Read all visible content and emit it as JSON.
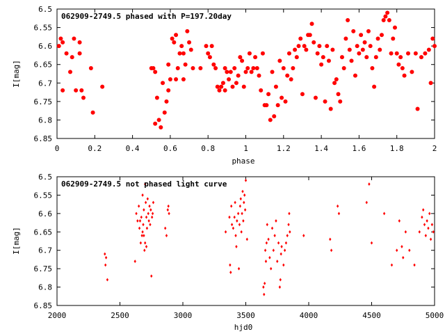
{
  "chart_data": [
    {
      "type": "scatter",
      "title": "062909-2749.5 phased with P=197.20day",
      "xlabel": "phase",
      "ylabel": "I[mag]",
      "xlim": [
        0,
        2
      ],
      "ylim": [
        6.85,
        6.5
      ],
      "y_inverted": true,
      "xticks": [
        "0",
        "0.2",
        "0.4",
        "0.6",
        "0.8",
        "1",
        "1.2",
        "1.4",
        "1.6",
        "1.8",
        "2"
      ],
      "yticks": [
        "6.5",
        "6.55",
        "6.6",
        "6.65",
        "6.7",
        "6.75",
        "6.8",
        "6.85"
      ],
      "marker": "filled-circle",
      "color": "#ff0000",
      "points": [
        [
          0.01,
          6.6
        ],
        [
          0.02,
          6.58
        ],
        [
          0.03,
          6.59
        ],
        [
          0.03,
          6.72
        ],
        [
          0.05,
          6.62
        ],
        [
          0.07,
          6.67
        ],
        [
          0.08,
          6.63
        ],
        [
          0.09,
          6.58
        ],
        [
          0.1,
          6.72
        ],
        [
          0.12,
          6.59
        ],
        [
          0.12,
          6.62
        ],
        [
          0.13,
          6.72
        ],
        [
          0.14,
          6.74
        ],
        [
          0.18,
          6.66
        ],
        [
          0.19,
          6.78
        ],
        [
          0.24,
          6.71
        ],
        [
          0.5,
          6.66
        ],
        [
          0.51,
          6.66
        ],
        [
          0.52,
          6.67
        ],
        [
          0.52,
          6.81
        ],
        [
          0.53,
          6.74
        ],
        [
          0.54,
          6.8
        ],
        [
          0.55,
          6.82
        ],
        [
          0.56,
          6.7
        ],
        [
          0.57,
          6.78
        ],
        [
          0.58,
          6.75
        ],
        [
          0.59,
          6.72
        ],
        [
          0.59,
          6.65
        ],
        [
          0.6,
          6.69
        ],
        [
          0.61,
          6.58
        ],
        [
          0.62,
          6.59
        ],
        [
          0.63,
          6.57
        ],
        [
          0.63,
          6.69
        ],
        [
          0.64,
          6.66
        ],
        [
          0.65,
          6.62
        ],
        [
          0.66,
          6.6
        ],
        [
          0.67,
          6.62
        ],
        [
          0.67,
          6.69
        ],
        [
          0.68,
          6.65
        ],
        [
          0.69,
          6.56
        ],
        [
          0.7,
          6.59
        ],
        [
          0.71,
          6.61
        ],
        [
          0.72,
          6.66
        ],
        [
          0.76,
          6.66
        ],
        [
          0.79,
          6.6
        ],
        [
          0.8,
          6.62
        ],
        [
          0.81,
          6.63
        ],
        [
          0.82,
          6.6
        ],
        [
          0.83,
          6.65
        ],
        [
          0.84,
          6.66
        ],
        [
          0.85,
          6.71
        ],
        [
          0.86,
          6.72
        ],
        [
          0.87,
          6.71
        ],
        [
          0.88,
          6.7
        ],
        [
          0.89,
          6.72
        ],
        [
          0.89,
          6.66
        ],
        [
          0.9,
          6.67
        ],
        [
          0.91,
          6.69
        ],
        [
          0.92,
          6.67
        ],
        [
          0.93,
          6.71
        ],
        [
          0.94,
          6.66
        ],
        [
          0.95,
          6.7
        ],
        [
          0.96,
          6.68
        ],
        [
          0.97,
          6.63
        ],
        [
          0.98,
          6.64
        ],
        [
          0.99,
          6.71
        ],
        [
          1.0,
          6.67
        ],
        [
          1.01,
          6.66
        ],
        [
          1.02,
          6.62
        ],
        [
          1.03,
          6.67
        ],
        [
          1.04,
          6.66
        ],
        [
          1.05,
          6.63
        ],
        [
          1.06,
          6.66
        ],
        [
          1.07,
          6.68
        ],
        [
          1.08,
          6.72
        ],
        [
          1.09,
          6.62
        ],
        [
          1.1,
          6.76
        ],
        [
          1.11,
          6.76
        ],
        [
          1.12,
          6.73
        ],
        [
          1.13,
          6.8
        ],
        [
          1.14,
          6.67
        ],
        [
          1.15,
          6.79
        ],
        [
          1.16,
          6.71
        ],
        [
          1.17,
          6.76
        ],
        [
          1.18,
          6.64
        ],
        [
          1.19,
          6.74
        ],
        [
          1.2,
          6.66
        ],
        [
          1.21,
          6.75
        ],
        [
          1.22,
          6.68
        ],
        [
          1.23,
          6.62
        ],
        [
          1.24,
          6.69
        ],
        [
          1.25,
          6.66
        ],
        [
          1.26,
          6.61
        ],
        [
          1.27,
          6.63
        ],
        [
          1.28,
          6.6
        ],
        [
          1.29,
          6.58
        ],
        [
          1.3,
          6.73
        ],
        [
          1.31,
          6.6
        ],
        [
          1.32,
          6.61
        ],
        [
          1.33,
          6.57
        ],
        [
          1.34,
          6.57
        ],
        [
          1.35,
          6.54
        ],
        [
          1.36,
          6.59
        ],
        [
          1.37,
          6.74
        ],
        [
          1.38,
          6.62
        ],
        [
          1.39,
          6.6
        ],
        [
          1.4,
          6.65
        ],
        [
          1.41,
          6.63
        ],
        [
          1.42,
          6.75
        ],
        [
          1.43,
          6.6
        ],
        [
          1.44,
          6.64
        ],
        [
          1.45,
          6.77
        ],
        [
          1.46,
          6.61
        ],
        [
          1.47,
          6.7
        ],
        [
          1.48,
          6.69
        ],
        [
          1.49,
          6.73
        ],
        [
          1.5,
          6.75
        ],
        [
          1.51,
          6.63
        ],
        [
          1.52,
          6.66
        ],
        [
          1.53,
          6.58
        ],
        [
          1.54,
          6.53
        ],
        [
          1.55,
          6.61
        ],
        [
          1.56,
          6.64
        ],
        [
          1.57,
          6.56
        ],
        [
          1.58,
          6.68
        ],
        [
          1.59,
          6.6
        ],
        [
          1.6,
          6.62
        ],
        [
          1.61,
          6.57
        ],
        [
          1.62,
          6.61
        ],
        [
          1.63,
          6.59
        ],
        [
          1.64,
          6.63
        ],
        [
          1.65,
          6.56
        ],
        [
          1.66,
          6.6
        ],
        [
          1.67,
          6.66
        ],
        [
          1.68,
          6.71
        ],
        [
          1.69,
          6.63
        ],
        [
          1.7,
          6.58
        ],
        [
          1.71,
          6.61
        ],
        [
          1.72,
          6.57
        ],
        [
          1.73,
          6.53
        ],
        [
          1.74,
          6.52
        ],
        [
          1.75,
          6.51
        ],
        [
          1.76,
          6.53
        ],
        [
          1.77,
          6.62
        ],
        [
          1.78,
          6.58
        ],
        [
          1.79,
          6.55
        ],
        [
          1.8,
          6.62
        ],
        [
          1.81,
          6.65
        ],
        [
          1.82,
          6.63
        ],
        [
          1.83,
          6.66
        ],
        [
          1.84,
          6.68
        ],
        [
          1.86,
          6.62
        ],
        [
          1.88,
          6.67
        ],
        [
          1.9,
          6.62
        ],
        [
          1.91,
          6.77
        ],
        [
          1.93,
          6.63
        ],
        [
          1.95,
          6.62
        ],
        [
          1.97,
          6.61
        ],
        [
          1.98,
          6.7
        ],
        [
          1.99,
          6.58
        ],
        [
          2.0,
          6.6
        ]
      ]
    },
    {
      "type": "scatter",
      "title": "062909-2749.5 not phased light curve",
      "xlabel": "hjd0",
      "ylabel": "I[mag]",
      "xlim": [
        2000,
        5000
      ],
      "ylim": [
        6.85,
        6.5
      ],
      "y_inverted": true,
      "xticks": [
        "2000",
        "2500",
        "3000",
        "3500",
        "4000",
        "4500",
        "5000"
      ],
      "yticks": [
        "6.5",
        "6.55",
        "6.6",
        "6.65",
        "6.7",
        "6.75",
        "6.8",
        "6.85"
      ],
      "marker": "small-diamond",
      "color": "#ff0000",
      "points": [
        [
          2380,
          6.71
        ],
        [
          2385,
          6.74
        ],
        [
          2400,
          6.78
        ],
        [
          2390,
          6.72
        ],
        [
          2620,
          6.73
        ],
        [
          2630,
          6.6
        ],
        [
          2640,
          6.62
        ],
        [
          2650,
          6.58
        ],
        [
          2655,
          6.64
        ],
        [
          2660,
          6.62
        ],
        [
          2665,
          6.68
        ],
        [
          2670,
          6.61
        ],
        [
          2675,
          6.66
        ],
        [
          2680,
          6.55
        ],
        [
          2685,
          6.63
        ],
        [
          2690,
          6.59
        ],
        [
          2695,
          6.7
        ],
        [
          2700,
          6.52
        ],
        [
          2705,
          6.57
        ],
        [
          2710,
          6.61
        ],
        [
          2715,
          6.64
        ],
        [
          2720,
          6.56
        ],
        [
          2725,
          6.6
        ],
        [
          2730,
          6.62
        ],
        [
          2735,
          6.58
        ],
        [
          2740,
          6.63
        ],
        [
          2745,
          6.59
        ],
        [
          2750,
          6.77
        ],
        [
          2755,
          6.61
        ],
        [
          2760,
          6.6
        ],
        [
          2765,
          6.57
        ],
        [
          2700,
          6.68
        ],
        [
          2690,
          6.66
        ],
        [
          2710,
          6.69
        ],
        [
          2680,
          6.65
        ],
        [
          2860,
          6.64
        ],
        [
          2870,
          6.66
        ],
        [
          2880,
          6.59
        ],
        [
          2885,
          6.58
        ],
        [
          2890,
          6.6
        ],
        [
          3340,
          6.65
        ],
        [
          3370,
          6.61
        ],
        [
          3375,
          6.74
        ],
        [
          3380,
          6.76
        ],
        [
          3385,
          6.58
        ],
        [
          3390,
          6.63
        ],
        [
          3400,
          6.64
        ],
        [
          3410,
          6.61
        ],
        [
          3415,
          6.57
        ],
        [
          3420,
          6.66
        ],
        [
          3425,
          6.69
        ],
        [
          3430,
          6.62
        ],
        [
          3440,
          6.6
        ],
        [
          3445,
          6.75
        ],
        [
          3450,
          6.63
        ],
        [
          3455,
          6.58
        ],
        [
          3460,
          6.56
        ],
        [
          3465,
          6.65
        ],
        [
          3470,
          6.6
        ],
        [
          3475,
          6.54
        ],
        [
          3480,
          6.62
        ],
        [
          3485,
          6.57
        ],
        [
          3490,
          6.55
        ],
        [
          3495,
          6.59
        ],
        [
          3500,
          6.51
        ],
        [
          3510,
          6.67
        ],
        [
          3640,
          6.8
        ],
        [
          3645,
          6.82
        ],
        [
          3650,
          6.79
        ],
        [
          3655,
          6.7
        ],
        [
          3660,
          6.73
        ],
        [
          3665,
          6.68
        ],
        [
          3670,
          6.63
        ],
        [
          3680,
          6.67
        ],
        [
          3690,
          6.72
        ],
        [
          3700,
          6.75
        ],
        [
          3710,
          6.64
        ],
        [
          3720,
          6.7
        ],
        [
          3730,
          6.66
        ],
        [
          3740,
          6.62
        ],
        [
          3750,
          6.73
        ],
        [
          3760,
          6.68
        ],
        [
          3770,
          6.8
        ],
        [
          3775,
          6.78
        ],
        [
          3780,
          6.71
        ],
        [
          3785,
          6.69
        ],
        [
          3800,
          6.74
        ],
        [
          3810,
          6.7
        ],
        [
          3820,
          6.68
        ],
        [
          3830,
          6.66
        ],
        [
          3840,
          6.63
        ],
        [
          3845,
          6.6
        ],
        [
          3850,
          6.65
        ],
        [
          3960,
          6.66
        ],
        [
          4170,
          6.67
        ],
        [
          4180,
          6.7
        ],
        [
          4230,
          6.58
        ],
        [
          4240,
          6.6
        ],
        [
          4460,
          6.57
        ],
        [
          4480,
          6.52
        ],
        [
          4500,
          6.68
        ],
        [
          4600,
          6.6
        ],
        [
          4660,
          6.74
        ],
        [
          4700,
          6.7
        ],
        [
          4720,
          6.62
        ],
        [
          4740,
          6.69
        ],
        [
          4750,
          6.72
        ],
        [
          4770,
          6.65
        ],
        [
          4800,
          6.7
        ],
        [
          4840,
          6.74
        ],
        [
          4880,
          6.65
        ],
        [
          4900,
          6.61
        ],
        [
          4910,
          6.59
        ],
        [
          4920,
          6.63
        ],
        [
          4930,
          6.66
        ],
        [
          4940,
          6.62
        ],
        [
          4950,
          6.64
        ],
        [
          4960,
          6.6
        ],
        [
          4970,
          6.67
        ],
        [
          4980,
          6.63
        ],
        [
          4990,
          6.65
        ]
      ]
    }
  ]
}
